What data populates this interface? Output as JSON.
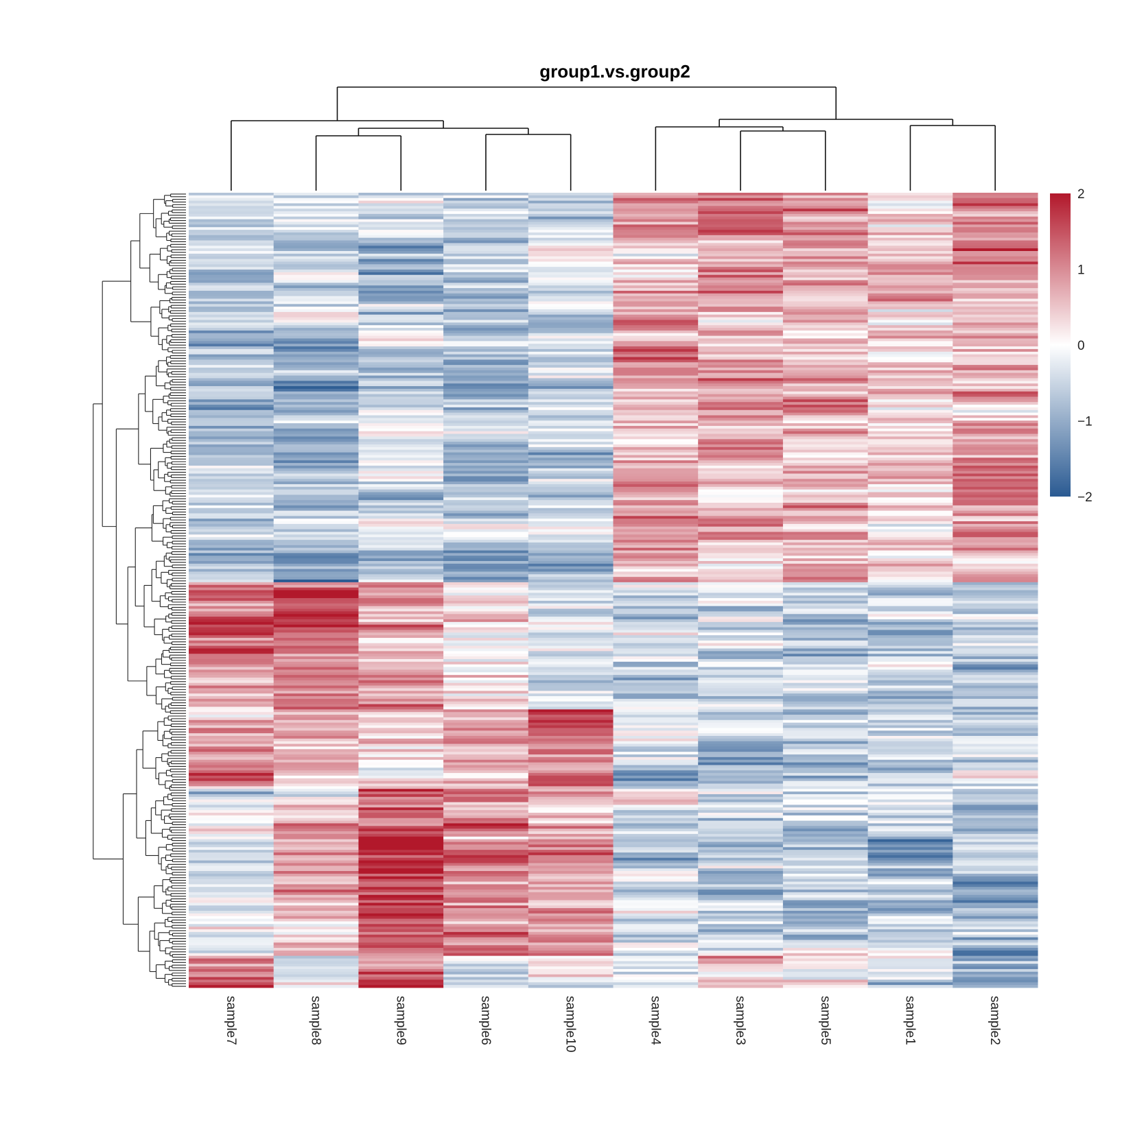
{
  "chart_data": {
    "type": "heatmap",
    "title": "group1.vs.group2",
    "columns": [
      "sample7",
      "sample8",
      "sample9",
      "sample6",
      "sample10",
      "sample4",
      "sample3",
      "sample5",
      "sample1",
      "sample2"
    ],
    "row_count": 300,
    "color_scale": {
      "min": -2,
      "max": 2,
      "ticks": [
        "2",
        "1",
        "0",
        "−1",
        "−2"
      ],
      "low_color": "#2a5a92",
      "mid_color": "#ffffff",
      "high_color": "#b2182b"
    },
    "row_blocks": [
      {
        "start": 0,
        "end": 0.49,
        "means": [
          -0.7,
          -0.7,
          -0.6,
          -0.7,
          -0.7,
          0.9,
          0.9,
          0.8,
          0.4,
          1.0
        ]
      },
      {
        "start": 0.49,
        "end": 0.65,
        "means": [
          1.1,
          1.2,
          0.9,
          0.2,
          -0.6,
          -0.5,
          -0.6,
          -0.7,
          -0.5,
          -0.8
        ]
      },
      {
        "start": 0.65,
        "end": 0.75,
        "means": [
          0.9,
          0.6,
          0.2,
          0.7,
          1.3,
          -0.5,
          -0.6,
          -0.8,
          -0.6,
          -0.7
        ]
      },
      {
        "start": 0.75,
        "end": 0.96,
        "means": [
          -0.3,
          0.6,
          1.6,
          0.9,
          0.9,
          -0.5,
          -0.6,
          -0.5,
          -0.7,
          -0.8
        ]
      },
      {
        "start": 0.96,
        "end": 1.0,
        "means": [
          1.0,
          -0.2,
          1.6,
          -0.2,
          -0.3,
          -0.3,
          0.3,
          0.2,
          -0.6,
          -0.7
        ]
      }
    ],
    "column_dendrogram": {
      "labels_order": [
        "sample7",
        "sample8",
        "sample9",
        "sample6",
        "sample10",
        "sample4",
        "sample3",
        "sample5",
        "sample1",
        "sample2"
      ]
    },
    "legend_placement": "right",
    "xlabel": "",
    "ylabel": ""
  }
}
